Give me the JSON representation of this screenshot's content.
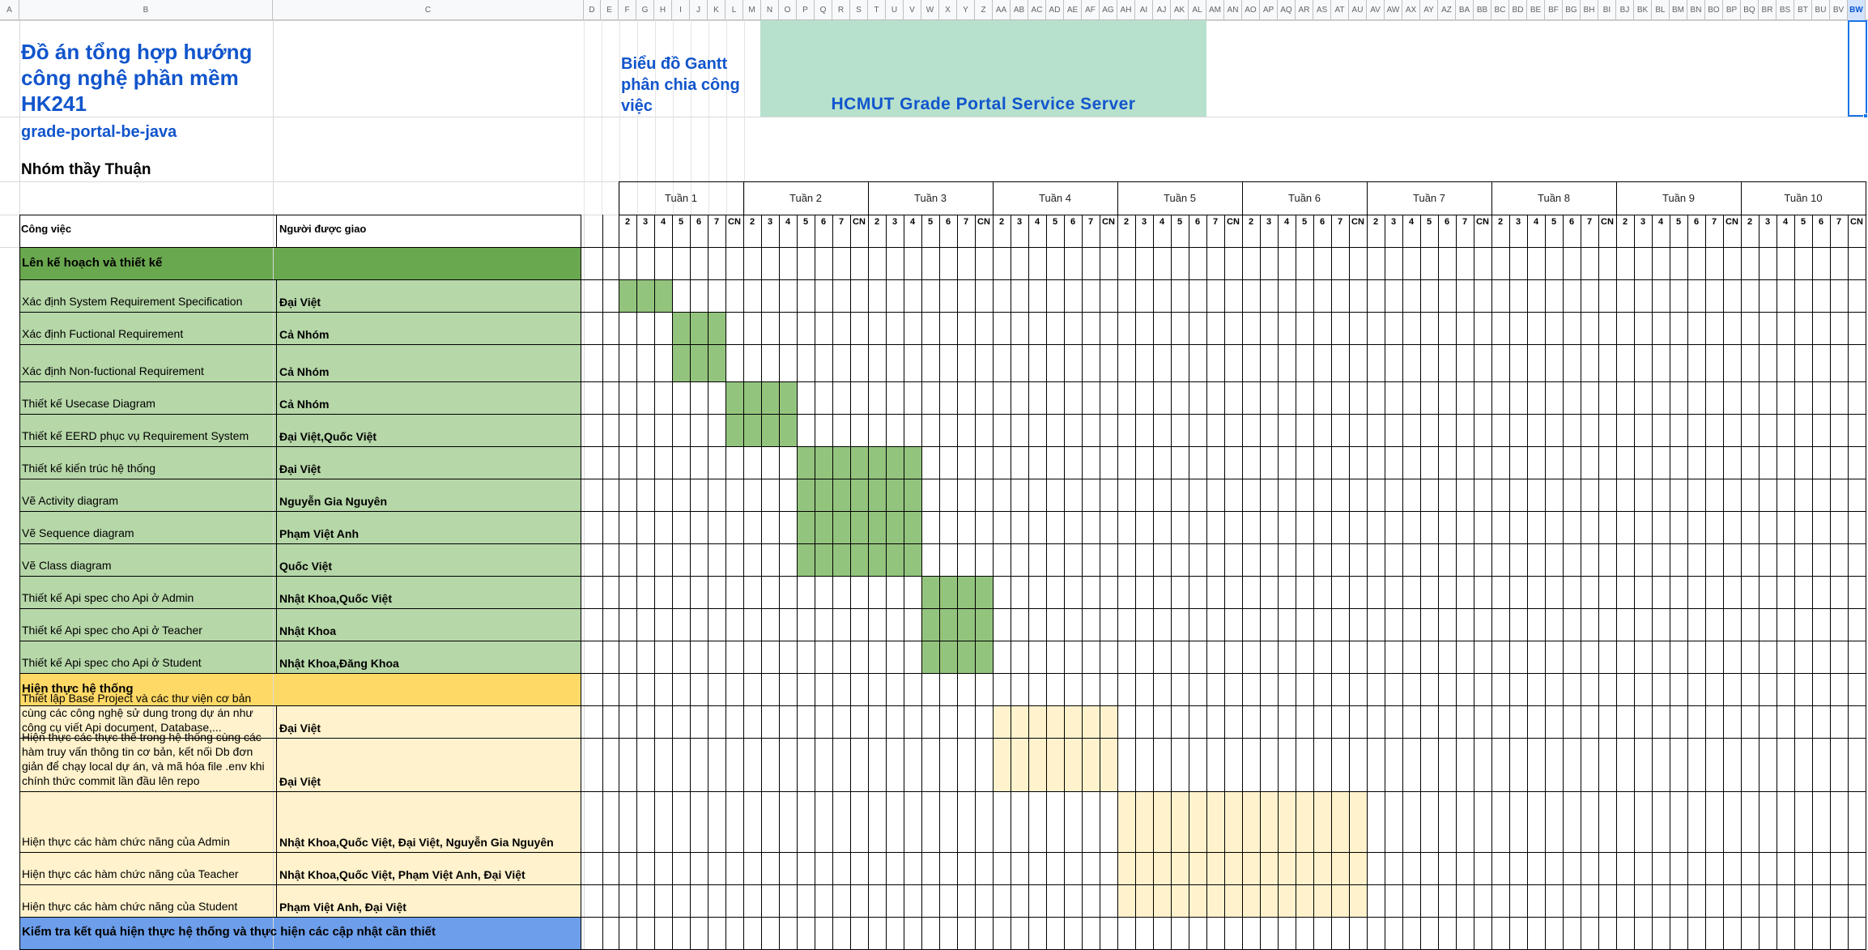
{
  "colors": {
    "section_plan": "#6aa84f",
    "task_plan": "#b6d7a8",
    "bar_plan": "#93c47d",
    "section_impl": "#ffd966",
    "task_impl": "#fff2cc",
    "section_test": "#6d9eeb",
    "banner": "#b7e1cd",
    "title_blue": "#1155cc",
    "grid_dark": "#000000",
    "grid_light": "#c0c0c0"
  },
  "sheet": {
    "column_headers": [
      "A",
      "B",
      "C",
      "D",
      "E",
      "F",
      "G",
      "H",
      "I",
      "J",
      "K",
      "L",
      "M",
      "N",
      "O",
      "P",
      "Q",
      "R",
      "S",
      "T",
      "U",
      "V",
      "W",
      "X",
      "Y",
      "Z",
      "AA",
      "AB",
      "AC",
      "AD",
      "AE",
      "AF",
      "AG",
      "AH",
      "AI",
      "AJ",
      "AK",
      "AL",
      "AM",
      "AN",
      "AO",
      "AP",
      "AQ",
      "AR",
      "AS",
      "AT",
      "AU",
      "AV",
      "AW",
      "AX",
      "AY",
      "AZ",
      "BA",
      "BB",
      "BC",
      "BD",
      "BE",
      "BF",
      "BG",
      "BH",
      "BI",
      "BJ",
      "BK",
      "BL",
      "BM",
      "BN",
      "BO",
      "BP",
      "BQ",
      "BR",
      "BS",
      "BT",
      "BU",
      "BV",
      "BW"
    ],
    "selected_column": "BW"
  },
  "project": {
    "title": "Đồ án tổng hợp hướng công nghệ phần mềm HK241",
    "repo": "grade-portal-be-java",
    "group": "Nhóm thầy Thuận",
    "gantt_label": "Biểu đồ Gantt phân chia công việc",
    "banner": "HCMUT Grade Portal Service Server"
  },
  "table": {
    "task_header": "Công việc",
    "assignee_header": "Người được giao"
  },
  "timeline": {
    "weeks": [
      "Tuần 1",
      "Tuần 2",
      "Tuần 3",
      "Tuần 4",
      "Tuần 5",
      "Tuần 6",
      "Tuần 7",
      "Tuần 8",
      "Tuần 9",
      "Tuần 10"
    ],
    "days": [
      "2",
      "3",
      "4",
      "5",
      "6",
      "7",
      "CN"
    ]
  },
  "rows": [
    {
      "kind": "section",
      "phase": "plan",
      "label": "Lên kế hoạch và thiết kế"
    },
    {
      "kind": "task",
      "phase": "plan",
      "task": "Xác định System Requirement Specification",
      "assignee": "Đại Việt",
      "bar": {
        "week": 1,
        "from_day": "2",
        "to_day": "4"
      }
    },
    {
      "kind": "task",
      "phase": "plan",
      "task": "Xác định Fuctional Requirement",
      "assignee": "Cả Nhóm",
      "bar": {
        "week": 1,
        "from_day": "5",
        "to_day": "7"
      }
    },
    {
      "kind": "task",
      "phase": "plan",
      "task": "Xác định Non-fuctional Requirement",
      "assignee": "Cả Nhóm",
      "bar": {
        "week": 1,
        "from_day": "5",
        "to_day": "7"
      }
    },
    {
      "kind": "task",
      "phase": "plan",
      "task": "Thiết kế Usecase Diagram",
      "assignee": "Cả Nhóm",
      "bar": {
        "week": 1,
        "from_day": "CN",
        "to_day": "2/4"
      }
    },
    {
      "kind": "task",
      "phase": "plan",
      "task": "Thiết kế EERD phục vụ Requirement System",
      "assignee": "Đại Việt,Quốc Việt",
      "bar": {
        "week": 1,
        "from_day": "CN",
        "to_day": "2/4"
      }
    },
    {
      "kind": "task",
      "phase": "plan",
      "task": "Thiết kế kiến trúc hệ thống",
      "assignee": "Đại Việt",
      "bar": {
        "week": 2,
        "from_day": "5",
        "to_day": "3/3"
      }
    },
    {
      "kind": "task",
      "phase": "plan",
      "task": "Vẽ Activity diagram",
      "assignee": "Nguyễn Gia Nguyên",
      "bar": {
        "week": 2,
        "from_day": "5",
        "to_day": "3/3"
      }
    },
    {
      "kind": "task",
      "phase": "plan",
      "task": "Vẽ Sequence diagram",
      "assignee": "Phạm Việt Anh",
      "bar": {
        "week": 2,
        "from_day": "5",
        "to_day": "3/3"
      }
    },
    {
      "kind": "task",
      "phase": "plan",
      "task": "Vẽ Class diagram",
      "assignee": "Quốc Việt",
      "bar": {
        "week": 2,
        "from_day": "5",
        "to_day": "3/3"
      }
    },
    {
      "kind": "task",
      "phase": "plan",
      "task": "Thiết kế Api spec cho Api ở Admin",
      "assignee": "Nhật Khoa,Quốc Việt",
      "bar": {
        "week": 3,
        "from_day": "4",
        "to_day": "7"
      }
    },
    {
      "kind": "task",
      "phase": "plan",
      "task": "Thiết kế Api spec cho Api ở Teacher",
      "assignee": "Nhật Khoa",
      "bar": {
        "week": 3,
        "from_day": "4",
        "to_day": "7"
      }
    },
    {
      "kind": "task",
      "phase": "plan",
      "task": "Thiết kế Api spec cho Api ở Student",
      "assignee": "Nhật Khoa,Đăng Khoa",
      "bar": {
        "week": 3,
        "from_day": "4",
        "to_day": "7"
      }
    },
    {
      "kind": "section",
      "phase": "impl",
      "label": "Hiện thực hệ thống"
    },
    {
      "kind": "task",
      "phase": "impl",
      "task": "Thiết lập Base Project và các thư viện cơ bản cùng các công nghệ sử dung trong dự án như công cụ viết Api document, Database,...",
      "assignee": "Đại Việt",
      "bar": {
        "week": 3,
        "from_day": "CN",
        "to_day": "4/CN"
      }
    },
    {
      "kind": "task",
      "phase": "impl",
      "task": "Hiện thực các thực thể trong hệ thống cùng các hàm truy vấn thông tin cơ bản, kết nối Db đơn giản để chạy local dự án, và mã hóa file .env khi chính thức commit lần đầu lên repo",
      "assignee": "Đại Việt",
      "bar": {
        "week": 3,
        "from_day": "CN",
        "to_day": "4/CN"
      }
    },
    {
      "kind": "task",
      "phase": "impl",
      "task": "Hiện thực các hàm chức năng của Admin",
      "assignee": "Nhật Khoa,Quốc Việt, Đại Việt, Nguyễn Gia Nguyên",
      "bar": {
        "week": 5,
        "from_day": "2",
        "to_day": "6/CN"
      }
    },
    {
      "kind": "task",
      "phase": "impl",
      "task": "Hiện thực các hàm chức năng của Teacher",
      "assignee": "Nhật Khoa,Quốc Việt, Phạm Việt Anh, Đại Việt",
      "bar": {
        "week": 5,
        "from_day": "2",
        "to_day": "6/CN"
      }
    },
    {
      "kind": "task",
      "phase": "impl",
      "task": "Hiện thực các hàm chức năng của Student",
      "assignee": "Phạm Việt Anh, Đại Việt",
      "bar": {
        "week": 5,
        "from_day": "2",
        "to_day": "6/CN"
      }
    },
    {
      "kind": "section",
      "phase": "test",
      "label": "Kiểm tra kết quả hiện thực hệ thống và thực hiện các cập nhật cần thiết"
    }
  ]
}
